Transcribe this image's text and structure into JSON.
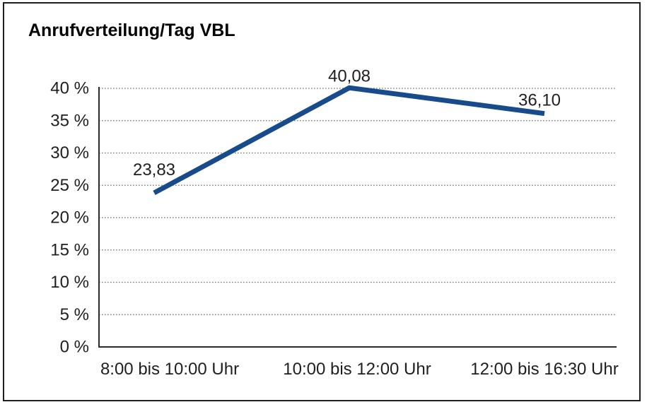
{
  "title": "Anrufverteilung/Tag VBL",
  "chart_data": {
    "type": "line",
    "title": "Anrufverteilung/Tag VBL",
    "categories": [
      "8:00 bis 10:00 Uhr",
      "10:00 bis 12:00 Uhr",
      "12:00 bis 16:30 Uhr"
    ],
    "values": [
      23.83,
      40.08,
      36.1
    ],
    "data_labels": [
      "23,83",
      "40,08",
      "36,10"
    ],
    "xlabel": "",
    "ylabel": "",
    "y_axis": {
      "min": 0,
      "max": 40,
      "step": 5,
      "tick_labels": [
        "0 %",
        "5 %",
        "10 %",
        "15 %",
        "20 %",
        "25 %",
        "30 %",
        "35 %",
        "40 %"
      ]
    },
    "grid": "horizontal-dotted",
    "legend": "none",
    "colors": {
      "line": "#174B8B",
      "gridline": "#707070",
      "axis": "#2b2b2b",
      "text": "#1f1f1f",
      "frame_border": "#1f1f1f",
      "background": "#ffffff"
    }
  }
}
